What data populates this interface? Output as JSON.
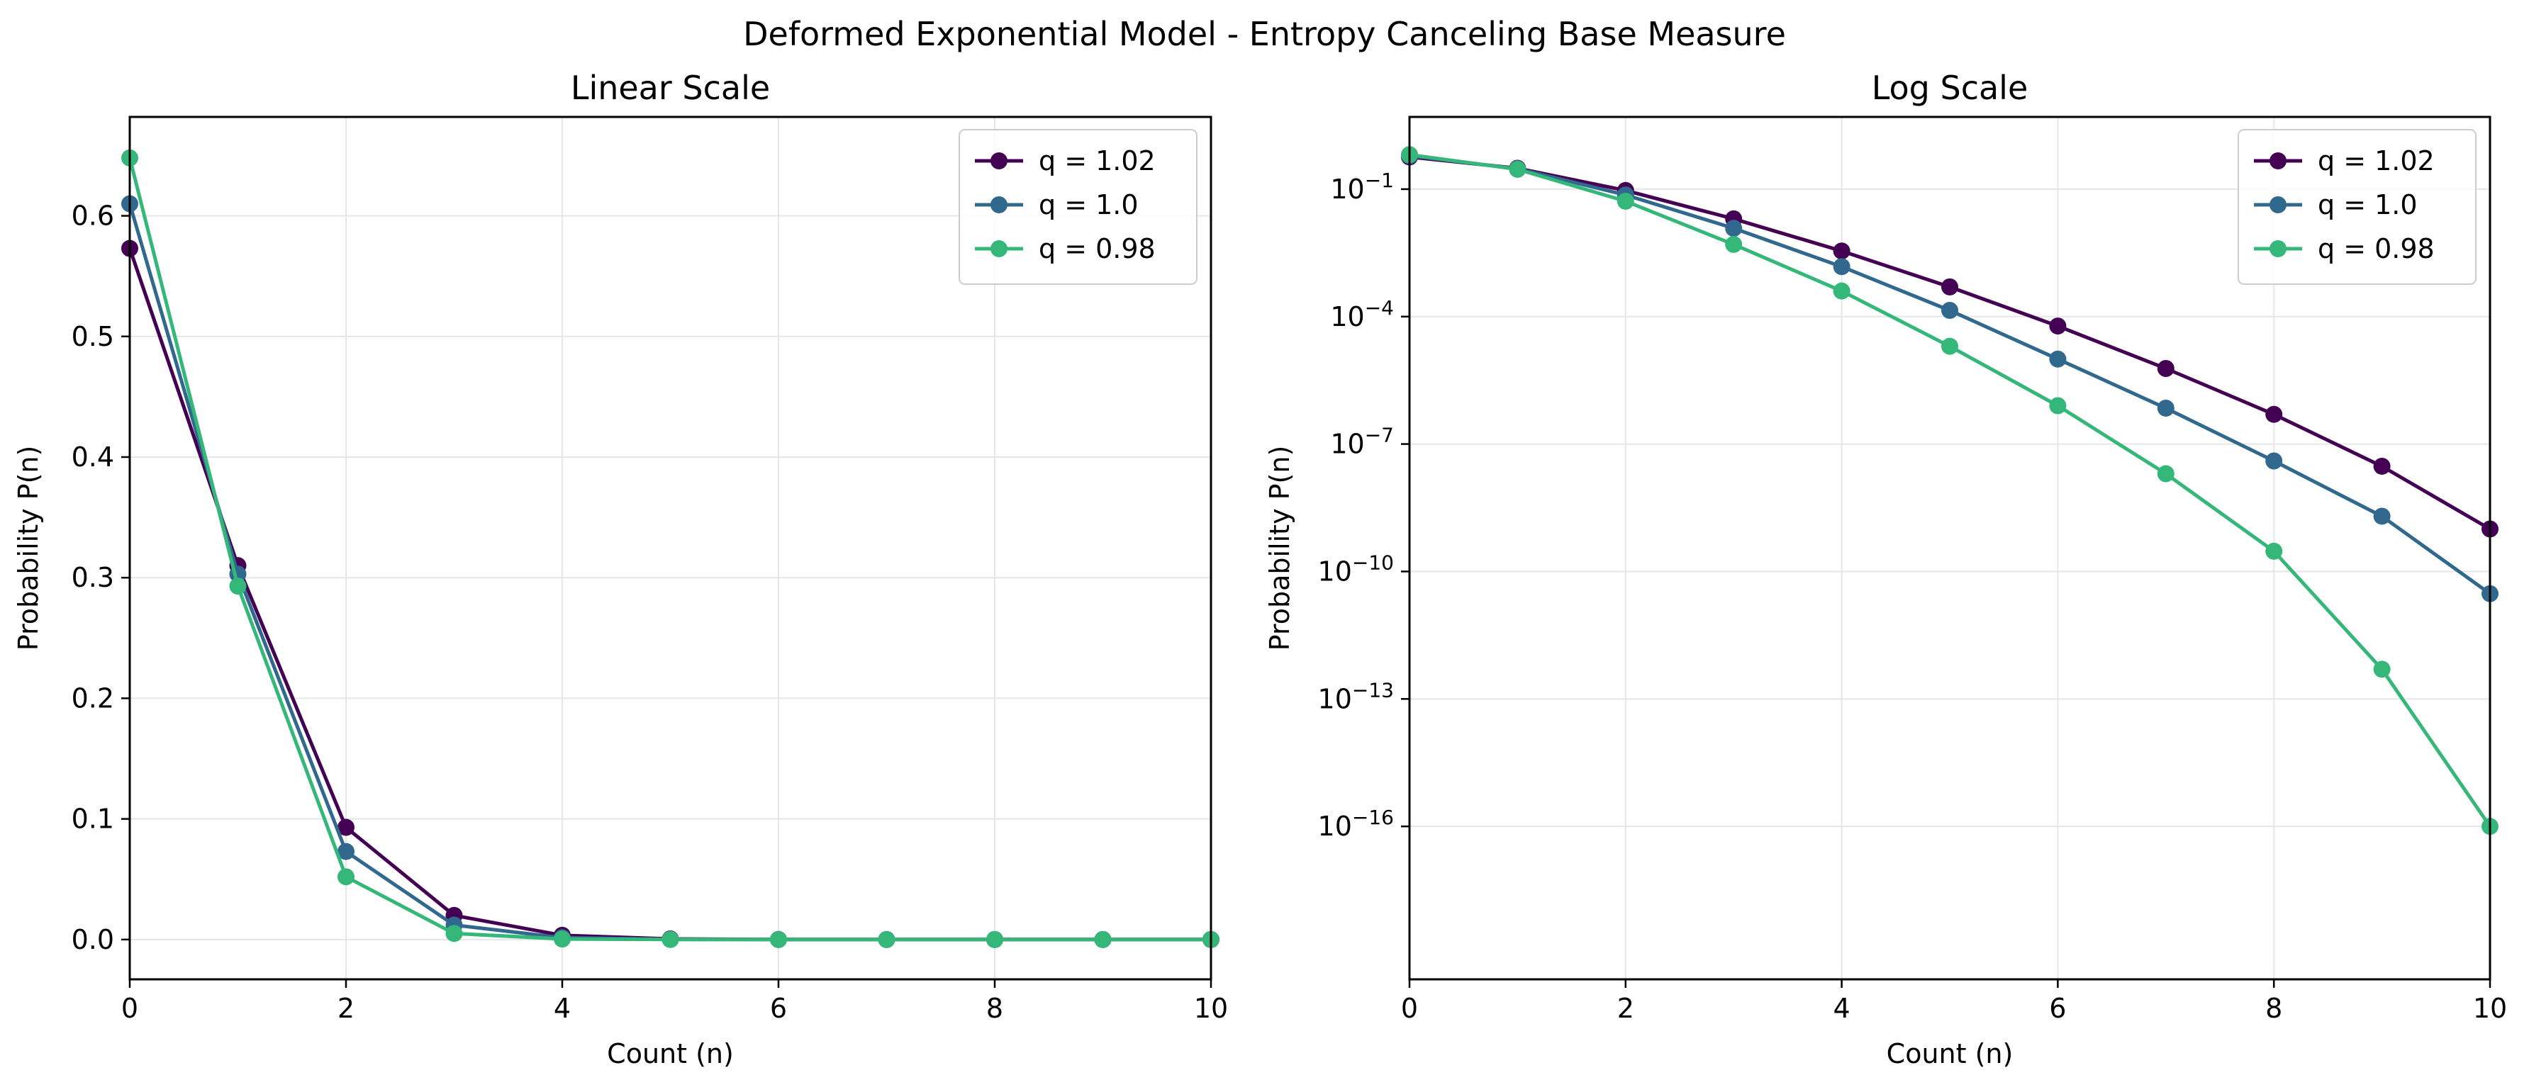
{
  "figure": {
    "title": "Deformed Exponential Model - Entropy Canceling Base Measure"
  },
  "chart_data": [
    {
      "type": "line",
      "title": "Linear Scale",
      "xlabel": "Count (n)",
      "ylabel": "Probability P(n)",
      "xlim": [
        0,
        10
      ],
      "ylim": [
        -0.033,
        0.682
      ],
      "x_ticks": [
        0,
        2,
        4,
        6,
        8,
        10
      ],
      "y_ticks": [
        0.0,
        0.1,
        0.2,
        0.3,
        0.4,
        0.5,
        0.6
      ],
      "y_tick_labels": [
        "0.0",
        "0.1",
        "0.2",
        "0.3",
        "0.4",
        "0.5",
        "0.6"
      ],
      "grid": true,
      "legend": "top-right",
      "x": [
        0,
        1,
        2,
        3,
        4,
        5,
        6,
        7,
        8,
        9,
        10
      ],
      "series": [
        {
          "name": "q = 1.02",
          "color": "#440154",
          "values": [
            0.573,
            0.31,
            0.093,
            0.02,
            0.0035,
            0.0005,
            6e-05,
            6e-06,
            5e-07,
            3e-08,
            1e-09
          ]
        },
        {
          "name": "q = 1.0",
          "color": "#31688e",
          "values": [
            0.61,
            0.303,
            0.073,
            0.012,
            0.0015,
            0.00014,
            1e-05,
            7e-07,
            4e-08,
            2e-09,
            3e-11
          ]
        },
        {
          "name": "q = 0.98",
          "color": "#35b779",
          "values": [
            0.648,
            0.293,
            0.052,
            0.005,
            0.0004,
            2e-05,
            8e-07,
            2e-08,
            3e-10,
            5e-13,
            1e-16
          ]
        }
      ]
    },
    {
      "type": "line",
      "title": "Log Scale",
      "xlabel": "Count (n)",
      "ylabel": "Probability P(n)",
      "xlim": [
        0,
        10
      ],
      "y_scale": "log",
      "ylim_log10": [
        -19.6,
        0.7
      ],
      "x_ticks": [
        0,
        2,
        4,
        6,
        8,
        10
      ],
      "y_tick_exponents": [
        -1,
        -4,
        -7,
        -10,
        -13,
        -16
      ],
      "grid": true,
      "legend": "top-right",
      "x": [
        0,
        1,
        2,
        3,
        4,
        5,
        6,
        7,
        8,
        9,
        10
      ],
      "series": [
        {
          "name": "q = 1.02",
          "color": "#440154",
          "values": [
            0.573,
            0.31,
            0.093,
            0.02,
            0.0035,
            0.0005,
            6e-05,
            6e-06,
            5e-07,
            3e-08,
            1e-09
          ]
        },
        {
          "name": "q = 1.0",
          "color": "#31688e",
          "values": [
            0.61,
            0.303,
            0.073,
            0.012,
            0.0015,
            0.00014,
            1e-05,
            7e-07,
            4e-08,
            2e-09,
            3e-11
          ]
        },
        {
          "name": "q = 0.98",
          "color": "#35b779",
          "values": [
            0.648,
            0.293,
            0.052,
            0.005,
            0.0004,
            2e-05,
            8e-07,
            2e-08,
            3e-10,
            5e-13,
            1e-16
          ]
        }
      ]
    }
  ]
}
